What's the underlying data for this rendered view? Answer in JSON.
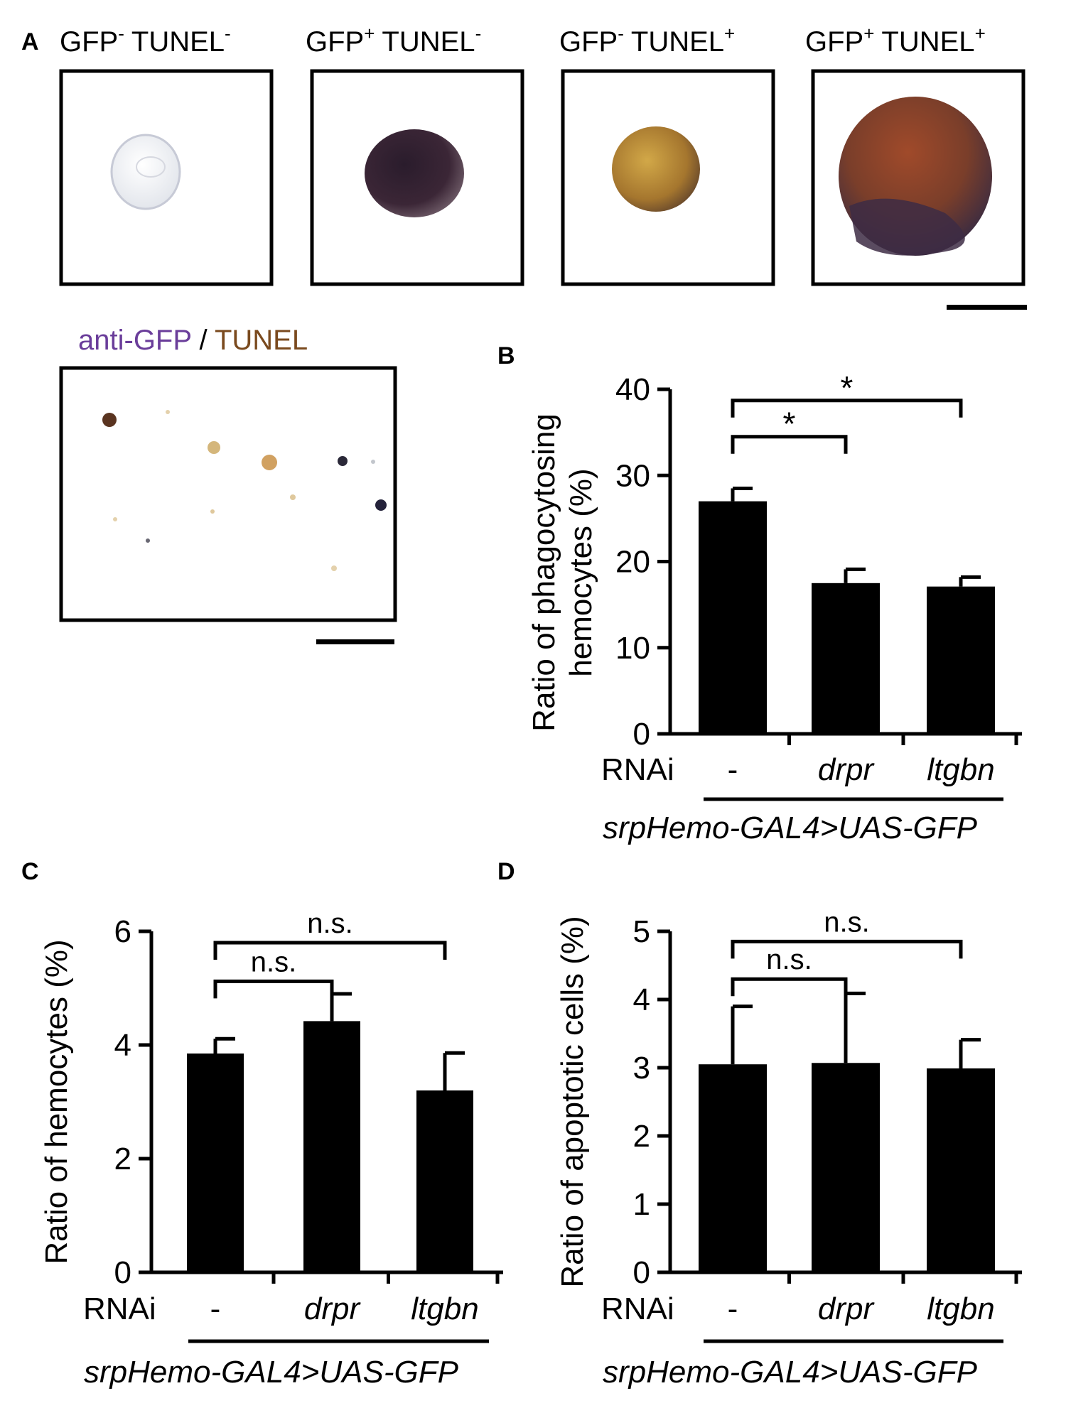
{
  "panel_a": {
    "letter": "A",
    "cells": [
      {
        "gfp": "GFP",
        "gfp_sign": "-",
        "tunel": "TUNEL",
        "tunel_sign": "-",
        "fill": "#eef0f0",
        "rim": "#c9ccd6"
      },
      {
        "gfp": "GFP",
        "gfp_sign": "+",
        "tunel": "TUNEL",
        "tunel_sign": "-",
        "fill": "#3a2538",
        "rim": "#6a5a6a"
      },
      {
        "gfp": "GFP",
        "gfp_sign": "-",
        "tunel": "TUNEL",
        "tunel_sign": "+",
        "fill": "#b98a3a",
        "rim": "#7a5a30"
      },
      {
        "gfp": "GFP",
        "gfp_sign": "+",
        "tunel": "TUNEL",
        "tunel_sign": "+",
        "fill": "#7a3f28",
        "rim": "#3a2a3a"
      }
    ],
    "overview_label": {
      "gfp": "anti-GFP",
      "sep": " / ",
      "tunel": "TUNEL"
    },
    "colors": {
      "gfp": "#6a3d9a",
      "tunel": "#7a4a1e"
    }
  },
  "chart_data": [
    {
      "panel": "B",
      "type": "bar",
      "ylabel_line1": "Ratio of phagocytosing",
      "ylabel_line2": "hemocytes (%)",
      "ylim": [
        0,
        40
      ],
      "yticks": [
        0,
        10,
        20,
        30,
        40
      ],
      "group_label": "RNAi",
      "categories": [
        "-",
        "drpr",
        "ltgbn"
      ],
      "values": [
        27.0,
        17.5,
        17.1
      ],
      "errors": [
        1.5,
        1.6,
        1.1
      ],
      "genotype": "srpHemo-GAL4>UAS-GFP",
      "comparisons": [
        {
          "from": 0,
          "to": 1,
          "label": "*",
          "y": 34.5
        },
        {
          "from": 0,
          "to": 2,
          "label": "*",
          "y": 38.7
        }
      ]
    },
    {
      "panel": "C",
      "type": "bar",
      "ylabel_line1": "Ratio of hemocytes (%)",
      "ylabel_line2": "",
      "ylim": [
        0,
        6
      ],
      "yticks": [
        0,
        2,
        4,
        6
      ],
      "group_label": "RNAi",
      "categories": [
        "-",
        "drpr",
        "ltgbn"
      ],
      "values": [
        3.85,
        4.42,
        3.2
      ],
      "errors": [
        0.26,
        0.48,
        0.66
      ],
      "genotype": "srpHemo-GAL4>UAS-GFP",
      "comparisons": [
        {
          "from": 0,
          "to": 1,
          "label": "n.s.",
          "y": 5.12
        },
        {
          "from": 0,
          "to": 2,
          "label": "n.s.",
          "y": 5.8
        }
      ]
    },
    {
      "panel": "D",
      "type": "bar",
      "ylabel_line1": "Ratio of apoptotic cells (%)",
      "ylabel_line2": "",
      "ylim": [
        0,
        5
      ],
      "yticks": [
        0,
        1,
        2,
        3,
        4,
        5
      ],
      "group_label": "RNAi",
      "categories": [
        "-",
        "drpr",
        "ltgbn"
      ],
      "values": [
        3.05,
        3.07,
        2.99
      ],
      "errors": [
        0.85,
        1.02,
        0.42
      ],
      "genotype": "srpHemo-GAL4>UAS-GFP",
      "comparisons": [
        {
          "from": 0,
          "to": 1,
          "label": "n.s.",
          "y": 4.3
        },
        {
          "from": 0,
          "to": 2,
          "label": "n.s.",
          "y": 4.85
        }
      ]
    }
  ]
}
